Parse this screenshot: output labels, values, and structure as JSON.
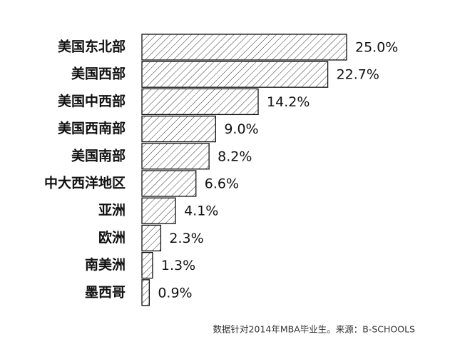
{
  "chart_data": {
    "type": "bar",
    "orientation": "horizontal",
    "categories": [
      "美国东北部",
      "美国西部",
      "美国中西部",
      "美国西南部",
      "美国南部",
      "中大西洋地区",
      "亚洲",
      "欧洲",
      "南美洲",
      "墨西哥"
    ],
    "values": [
      25.0,
      22.7,
      14.2,
      9.0,
      8.2,
      6.6,
      4.1,
      2.3,
      1.3,
      0.9
    ],
    "value_labels": [
      "25.0%",
      "22.7%",
      "14.2%",
      "9.0%",
      "8.2%",
      "6.6%",
      "4.1%",
      "2.3%",
      "1.3%",
      "0.9%"
    ],
    "color": "#111111",
    "note": "数据针对2014年MBA毕业生。来源：B-SCHOOLS"
  }
}
